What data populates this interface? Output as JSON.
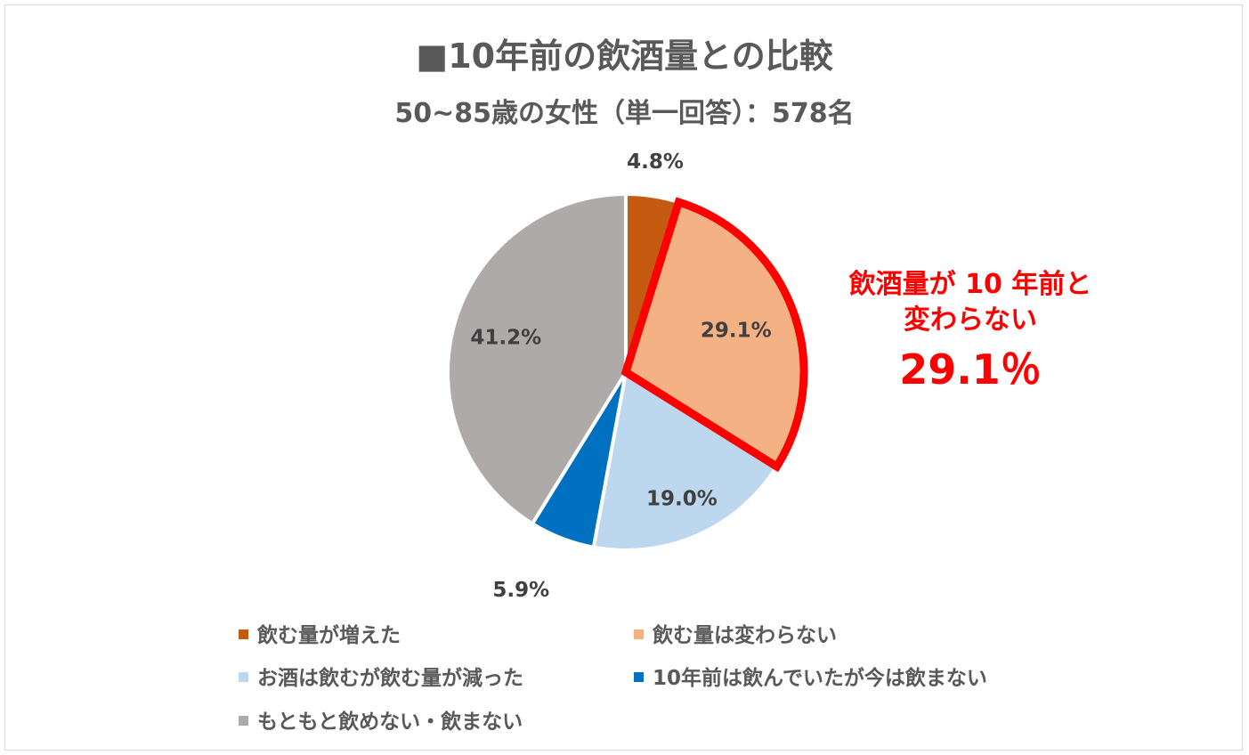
{
  "chart_data": {
    "type": "pie",
    "title": "■10年前の飲酒量との比較",
    "subtitle": "50~85歳の女性（単一回答）：578名",
    "slices": [
      {
        "label": "飲む量が増えた",
        "value": 4.8,
        "value_label": "4.8%",
        "color": "#c55a11"
      },
      {
        "label": "飲む量は変わらない",
        "value": 29.1,
        "value_label": "29.1%",
        "color": "#f4b183",
        "highlighted": true
      },
      {
        "label": "お酒は飲むが飲む量が減った",
        "value": 19.0,
        "value_label": "19.0%",
        "color": "#bdd7ee"
      },
      {
        "label": "10年前は飲んでいたが今は飲まない",
        "value": 5.9,
        "value_label": "5.9%",
        "color": "#0070c0"
      },
      {
        "label": "もともと飲めない・飲まない",
        "value": 41.2,
        "value_label": "41.2%",
        "color": "#aeaaaa"
      }
    ],
    "legend_position": "bottom",
    "callout": {
      "line1": "飲酒量が 10 年前と",
      "line2": "変わらない",
      "value": "29.1％",
      "color": "#ff0000"
    }
  }
}
